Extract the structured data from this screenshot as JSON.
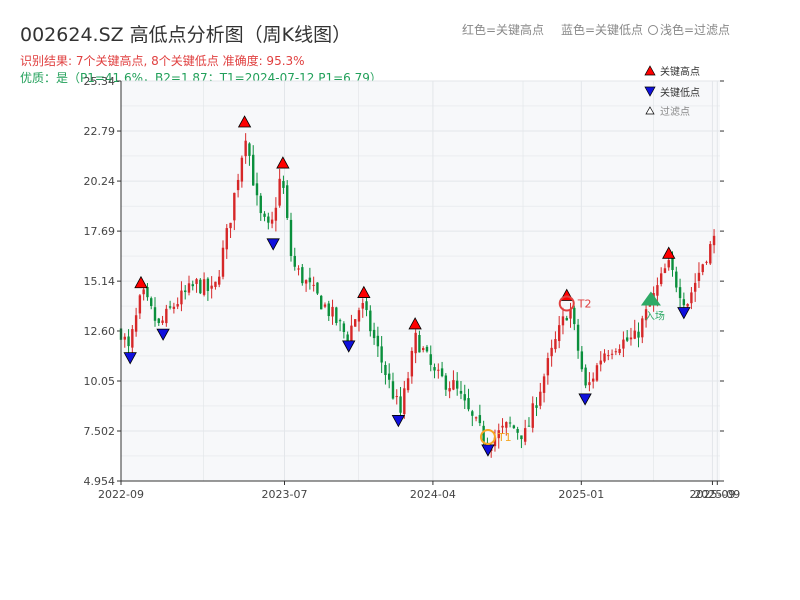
{
  "title": "002624.SZ 高低点分析图（周K线图）",
  "header_legend": {
    "red": "红色=关键高点",
    "blue": "蓝色=关键低点",
    "light": "浅色=过滤点"
  },
  "result_line": "识别结果: 7个关键高点, 8个关键低点  准确度: 95.3%",
  "quality_line": "优质：是（P1=41.6%，B2=1.87；T1=2024-07-12 P1=6.79）",
  "legend": {
    "high": "关键高点",
    "low": "关键低点",
    "filtered": "过滤点"
  },
  "colors": {
    "up": "#d62728",
    "down": "#0a8f3c",
    "high_marker": "#ff0000",
    "low_marker": "#1010dd",
    "t1": "#f5a623",
    "t2": "#e04040",
    "entry": "#2eaa66",
    "grid": "#e3e6ea",
    "plot_bg": "#f7f8fa"
  },
  "chart_data": {
    "type": "candlestick",
    "title": "002624.SZ 高低点分析图（周K线图）",
    "y_ticks": [
      "4.954",
      "7.502",
      "10.05",
      "12.60",
      "15.14",
      "17.69",
      "20.24",
      "22.79",
      "25.34"
    ],
    "ylim": [
      4.954,
      25.34
    ],
    "x_ticks": [
      {
        "label": "2022-09",
        "date": "2022-09-01"
      },
      {
        "label": "2023-07",
        "date": "2023-07-01"
      },
      {
        "label": "2024-04",
        "date": "2024-04-01"
      },
      {
        "label": "2025-01",
        "date": "2025-01-01"
      },
      {
        "label": "2025-09",
        "date": "2025-09-01"
      },
      {
        "label": "2025-09",
        "date": "2025-09-10"
      }
    ],
    "xlim": [
      "2022-09-01",
      "2025-09-15"
    ],
    "grid": true,
    "legend_position": "top-right",
    "path": [
      [
        "2022-09-01",
        12.6
      ],
      [
        "2022-09-15",
        11.6
      ],
      [
        "2022-10-10",
        14.5
      ],
      [
        "2022-11-10",
        12.8
      ],
      [
        "2022-12-10",
        14.0
      ],
      [
        "2023-01-20",
        15.0
      ],
      [
        "2023-02-20",
        14.5
      ],
      [
        "2023-03-20",
        18.0
      ],
      [
        "2023-04-20",
        22.7
      ],
      [
        "2023-05-15",
        18.5
      ],
      [
        "2023-06-05",
        17.6
      ],
      [
        "2023-06-25",
        20.7
      ],
      [
        "2023-07-15",
        16.0
      ],
      [
        "2023-08-25",
        14.5
      ],
      [
        "2023-09-25",
        13.5
      ],
      [
        "2023-10-25",
        12.3
      ],
      [
        "2023-11-20",
        14.0
      ],
      [
        "2023-12-10",
        12.5
      ],
      [
        "2024-01-10",
        10.0
      ],
      [
        "2024-02-01",
        8.4
      ],
      [
        "2024-03-01",
        12.3
      ],
      [
        "2024-04-05",
        10.3
      ],
      [
        "2024-05-10",
        9.8
      ],
      [
        "2024-06-10",
        8.2
      ],
      [
        "2024-07-12",
        6.9
      ],
      [
        "2024-08-20",
        7.8
      ],
      [
        "2024-09-20",
        7.3
      ],
      [
        "2024-10-20",
        10.0
      ],
      [
        "2024-11-20",
        12.5
      ],
      [
        "2024-12-10",
        13.9
      ],
      [
        "2025-01-10",
        9.5
      ],
      [
        "2025-02-10",
        11.5
      ],
      [
        "2025-03-10",
        12.0
      ],
      [
        "2025-04-10",
        12.2
      ],
      [
        "2025-05-10",
        14.0
      ],
      [
        "2025-06-10",
        16.0
      ],
      [
        "2025-07-15",
        14.0
      ],
      [
        "2025-08-20",
        16.5
      ],
      [
        "2025-09-10",
        17.5
      ]
    ],
    "key_highs": [
      {
        "date": "2022-10-08",
        "price": 14.6
      },
      {
        "date": "2023-04-18",
        "price": 22.79
      },
      {
        "date": "2023-06-28",
        "price": 20.7
      },
      {
        "date": "2023-11-25",
        "price": 14.1
      },
      {
        "date": "2024-02-28",
        "price": 12.5
      },
      {
        "date": "2024-12-05",
        "price": 13.95
      },
      {
        "date": "2025-06-12",
        "price": 16.1
      }
    ],
    "key_lows": [
      {
        "date": "2022-09-18",
        "price": 11.7
      },
      {
        "date": "2022-11-18",
        "price": 12.9
      },
      {
        "date": "2023-06-10",
        "price": 17.5
      },
      {
        "date": "2023-10-28",
        "price": 12.3
      },
      {
        "date": "2024-01-28",
        "price": 8.5
      },
      {
        "date": "2024-07-12",
        "price": 7.0
      },
      {
        "date": "2025-01-08",
        "price": 9.6
      },
      {
        "date": "2025-07-10",
        "price": 14.0
      }
    ],
    "annotations": [
      {
        "label": "T1",
        "date": "2024-07-12",
        "price": 6.79
      },
      {
        "label": "T2",
        "date": "2024-12-05",
        "price": 14.0
      },
      {
        "label": "入场",
        "date": "2025-05-10",
        "price": 14.0
      }
    ]
  }
}
